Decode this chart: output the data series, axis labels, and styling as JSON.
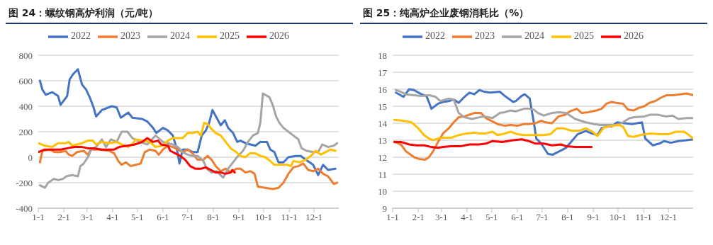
{
  "chart_data": [
    {
      "type": "line",
      "title": "图 24：螺纹钢高炉利润（元/吨）",
      "xlim": [
        "--01-01",
        "--12-31"
      ],
      "xticks": [
        {
          "value": "--01-01",
          "label": "1-1"
        },
        {
          "value": "--02-01",
          "label": "2-1"
        },
        {
          "value": "--03-01",
          "label": "3-1"
        },
        {
          "value": "--04-01",
          "label": "4-1"
        },
        {
          "value": "--05-01",
          "label": "5-1"
        },
        {
          "value": "--06-01",
          "label": "6-1"
        },
        {
          "value": "--07-01",
          "label": "7-1"
        },
        {
          "value": "--08-01",
          "label": "8-1"
        },
        {
          "value": "--09-01",
          "label": "9-1"
        },
        {
          "value": "--10-01",
          "label": "10-1"
        },
        {
          "value": "--11-01",
          "label": "11-1"
        },
        {
          "value": "--12-01",
          "label": "12-1"
        }
      ],
      "ylim": [
        -400,
        800
      ],
      "yticks": [
        -400,
        -200,
        0,
        200,
        400,
        600,
        800
      ],
      "grid": "y",
      "legend": "top",
      "marker": "none",
      "line_style": "solid",
      "series": [
        {
          "name": "2022",
          "color": "#4472c4",
          "x": [
            "--01-03",
            "--01-06",
            "--01-10",
            "--01-18",
            "--01-25",
            "--01-28",
            "--02-05",
            "--02-08",
            "--02-12",
            "--02-18",
            "--02-23",
            "--02-28",
            "--03-05",
            "--03-09",
            "--03-12",
            "--03-19",
            "--03-31",
            "--04-06",
            "--04-11",
            "--04-20",
            "--04-25",
            "--05-07",
            "--05-13",
            "--05-20",
            "--05-24",
            "--06-01",
            "--06-07",
            "--06-13",
            "--06-18",
            "--06-21",
            "--06-25",
            "--07-01",
            "--07-07",
            "--07-13",
            "--07-18",
            "--07-23",
            "--07-27",
            "--07-31",
            "--08-05",
            "--08-10",
            "--08-15",
            "--08-19",
            "--08-25",
            "--08-30",
            "--09-03",
            "--09-09",
            "--09-15",
            "--09-21",
            "--09-27",
            "--10-05",
            "--10-09",
            "--10-14",
            "--10-19",
            "--10-25",
            "--10-31",
            "--11-09",
            "--11-15",
            "--11-21",
            "--11-30",
            "--12-06",
            "--12-12",
            "--12-18",
            "--12-27"
          ],
          "values": [
            600,
            530,
            490,
            510,
            480,
            410,
            480,
            610,
            650,
            690,
            570,
            530,
            460,
            390,
            320,
            370,
            400,
            390,
            310,
            350,
            310,
            300,
            280,
            230,
            190,
            230,
            210,
            170,
            60,
            -50,
            60,
            60,
            40,
            40,
            170,
            210,
            270,
            370,
            310,
            250,
            290,
            230,
            190,
            120,
            130,
            110,
            100,
            90,
            120,
            120,
            60,
            40,
            -40,
            -40,
            0,
            10,
            10,
            -20,
            -60,
            -140,
            -60,
            -100,
            -90
          ]
        },
        {
          "name": "2023",
          "color": "#ed7d31",
          "x": [
            "--01-03",
            "--01-06",
            "--01-15",
            "--01-21",
            "--01-28",
            "--02-03",
            "--02-07",
            "--02-11",
            "--02-17",
            "--02-25",
            "--03-02",
            "--03-06",
            "--03-16",
            "--03-28",
            "--04-03",
            "--04-08",
            "--04-12",
            "--04-17",
            "--04-23",
            "--04-29",
            "--05-05",
            "--05-10",
            "--05-16",
            "--05-23",
            "--05-27",
            "--06-01",
            "--06-07",
            "--06-13",
            "--06-19",
            "--06-25",
            "--07-01",
            "--07-07",
            "--07-13",
            "--07-20",
            "--07-25",
            "--07-30",
            "--08-04",
            "--08-10",
            "--08-16",
            "--08-22",
            "--08-29",
            "--09-03",
            "--09-09",
            "--09-15",
            "--09-20",
            "--09-24",
            "--10-03",
            "--10-12",
            "--10-19",
            "--10-25",
            "--10-31",
            "--11-06",
            "--11-12",
            "--11-18",
            "--11-24",
            "--11-30",
            "--12-06",
            "--12-12",
            "--12-18",
            "--12-25",
            "--12-29"
          ],
          "values": [
            -40,
            50,
            60,
            40,
            40,
            50,
            20,
            10,
            40,
            50,
            20,
            60,
            60,
            50,
            30,
            -30,
            -60,
            -40,
            -70,
            -60,
            -50,
            40,
            60,
            50,
            20,
            60,
            90,
            80,
            60,
            40,
            60,
            30,
            -20,
            -20,
            10,
            -20,
            -70,
            -110,
            -90,
            -120,
            -90,
            -90,
            -120,
            -110,
            -130,
            -230,
            -240,
            -250,
            -240,
            -200,
            -130,
            -80,
            -70,
            -50,
            -100,
            -110,
            -90,
            -130,
            -150,
            -210,
            -200
          ]
        },
        {
          "name": "2024",
          "color": "#a5a5a5",
          "x": [
            "--01-03",
            "--01-09",
            "--01-13",
            "--01-20",
            "--01-25",
            "--01-31",
            "--02-04",
            "--02-11",
            "--02-18",
            "--02-21",
            "--02-25",
            "--03-03",
            "--03-06",
            "--03-12",
            "--03-19",
            "--03-24",
            "--03-30",
            "--04-06",
            "--04-12",
            "--04-19",
            "--04-25",
            "--05-04",
            "--05-13",
            "--05-23",
            "--06-01",
            "--06-07",
            "--06-13",
            "--06-19",
            "--06-25",
            "--07-01",
            "--07-07",
            "--07-13",
            "--07-20",
            "--07-24",
            "--07-30",
            "--08-05",
            "--08-13",
            "--08-19",
            "--08-25",
            "--08-31",
            "--09-06",
            "--09-12",
            "--09-18",
            "--09-24",
            "--09-27",
            "--09-30",
            "--10-08",
            "--10-12",
            "--10-16",
            "--10-20",
            "--10-25",
            "--10-31",
            "--11-06",
            "--11-12",
            "--11-16",
            "--11-22",
            "--11-30",
            "--12-06",
            "--12-11",
            "--12-18",
            "--12-25",
            "--12-29"
          ],
          "values": [
            -220,
            -240,
            -200,
            -170,
            -180,
            -170,
            -150,
            -140,
            -150,
            -70,
            -50,
            10,
            60,
            80,
            140,
            80,
            140,
            120,
            200,
            200,
            150,
            120,
            100,
            170,
            120,
            110,
            100,
            80,
            40,
            20,
            10,
            10,
            -30,
            -90,
            -120,
            -110,
            -160,
            -90,
            -40,
            10,
            50,
            120,
            170,
            190,
            270,
            500,
            470,
            410,
            320,
            270,
            230,
            200,
            170,
            140,
            70,
            50,
            40,
            40,
            100,
            80,
            90,
            110
          ]
        },
        {
          "name": "2025",
          "color": "#ffc000",
          "x": [
            "--01-01",
            "--01-09",
            "--01-18",
            "--01-25",
            "--02-03",
            "--02-07",
            "--02-11",
            "--02-17",
            "--02-23",
            "--03-02",
            "--03-08",
            "--03-12",
            "--03-19",
            "--03-28",
            "--04-06",
            "--04-12",
            "--04-20",
            "--04-26",
            "--04-29",
            "--05-07",
            "--05-16",
            "--05-23",
            "--06-01",
            "--06-07",
            "--06-13",
            "--06-19",
            "--06-25",
            "--07-01",
            "--07-07",
            "--07-13",
            "--07-17",
            "--07-21",
            "--07-25",
            "--07-30",
            "--08-04",
            "--08-10",
            "--08-16",
            "--08-22",
            "--08-29",
            "--09-03",
            "--09-09",
            "--09-14",
            "--09-21",
            "--09-27",
            "--10-03",
            "--10-09",
            "--10-14",
            "--10-22",
            "--10-30",
            "--11-03",
            "--11-06",
            "--11-14",
            "--11-21",
            "--11-27",
            "--12-03",
            "--12-09",
            "--12-15",
            "--12-21",
            "--12-27"
          ],
          "values": [
            110,
            90,
            80,
            110,
            110,
            120,
            90,
            100,
            110,
            130,
            130,
            100,
            120,
            110,
            120,
            100,
            80,
            110,
            140,
            130,
            120,
            80,
            90,
            130,
            150,
            150,
            150,
            190,
            190,
            200,
            170,
            270,
            260,
            220,
            190,
            170,
            120,
            70,
            40,
            10,
            0,
            30,
            30,
            10,
            0,
            -30,
            -60,
            -60,
            -60,
            -70,
            -30,
            -40,
            -20,
            10,
            50,
            20,
            40,
            60,
            50
          ]
        },
        {
          "name": "2026",
          "color": "#ff0000",
          "x": [
            "--01-01",
            "--01-09",
            "--01-18",
            "--01-28",
            "--02-05",
            "--02-14",
            "--02-23",
            "--03-02",
            "--03-09",
            "--03-19",
            "--03-25",
            "--04-03",
            "--04-09",
            "--04-19",
            "--04-28",
            "--05-07",
            "--05-13",
            "--05-20",
            "--05-26",
            "--05-30",
            "--06-07",
            "--06-10",
            "--06-16",
            "--06-22",
            "--06-28",
            "--07-04",
            "--07-10",
            "--07-17",
            "--07-23",
            "--07-29",
            "--08-04",
            "--08-10",
            "--08-16",
            "--08-22",
            "--08-24",
            "--08-27"
          ],
          "values": [
            40,
            60,
            60,
            60,
            70,
            80,
            80,
            70,
            70,
            60,
            60,
            60,
            80,
            90,
            100,
            120,
            150,
            120,
            130,
            100,
            90,
            50,
            30,
            10,
            -20,
            -70,
            -90,
            -90,
            -80,
            -100,
            -120,
            -120,
            -130,
            -120,
            -100,
            -120
          ]
        }
      ]
    },
    {
      "type": "line",
      "title": "图 25：纯高炉企业废钢消耗比（%）",
      "xlim": [
        "--01-01",
        "--12-31"
      ],
      "xticks": [
        {
          "value": "--01-01",
          "label": "1-1"
        },
        {
          "value": "--02-01",
          "label": "2-1"
        },
        {
          "value": "--03-01",
          "label": "3-1"
        },
        {
          "value": "--04-01",
          "label": "4-1"
        },
        {
          "value": "--05-01",
          "label": "5-1"
        },
        {
          "value": "--06-01",
          "label": "6-1"
        },
        {
          "value": "--07-01",
          "label": "7-1"
        },
        {
          "value": "--08-01",
          "label": "8-1"
        },
        {
          "value": "--09-01",
          "label": "9-1"
        },
        {
          "value": "--10-01",
          "label": "10-1"
        },
        {
          "value": "--11-01",
          "label": "11-1"
        },
        {
          "value": "--12-01",
          "label": "12-1"
        }
      ],
      "ylim": [
        9,
        18
      ],
      "yticks": [
        9,
        10,
        11,
        12,
        13,
        14,
        15,
        16,
        17,
        18
      ],
      "grid": "y",
      "legend": "top",
      "marker": "none",
      "line_style": "solid",
      "series": [
        {
          "name": "2022",
          "color": "#4472c4",
          "x": [
            "--01-05",
            "--01-14",
            "--01-21",
            "--01-27",
            "--02-05",
            "--02-11",
            "--02-17",
            "--02-25",
            "--03-03",
            "--03-10",
            "--03-16",
            "--03-22",
            "--03-29",
            "--04-04",
            "--04-10",
            "--04-16",
            "--04-22",
            "--04-29",
            "--05-11",
            "--05-17",
            "--05-27",
            "--05-30",
            "--06-06",
            "--06-10",
            "--06-16",
            "--06-21",
            "--06-24",
            "--06-30",
            "--07-08",
            "--07-14",
            "--07-22",
            "--07-30",
            "--08-06",
            "--08-13",
            "--08-23",
            "--08-30",
            "--09-06",
            "--09-11",
            "--09-17",
            "--09-23",
            "--09-30",
            "--10-09",
            "--10-18",
            "--10-30",
            "--11-03",
            "--11-12",
            "--11-20",
            "--11-26",
            "--12-04",
            "--12-13",
            "--12-23",
            "--12-31"
          ],
          "values": [
            15.8,
            15.55,
            16,
            15.95,
            15.7,
            15.6,
            14.85,
            15.15,
            15.25,
            15.3,
            15.4,
            15.2,
            15.55,
            15.8,
            15.7,
            15.95,
            15.85,
            15.8,
            15.85,
            15.6,
            15.25,
            15.3,
            15.6,
            15.7,
            15.45,
            14.05,
            13.1,
            12.8,
            12.2,
            12.15,
            12.35,
            12.55,
            12.95,
            13.35,
            13.55,
            13.4,
            13.3,
            13.7,
            13.8,
            13.8,
            14.05,
            14,
            13.95,
            14.05,
            13.1,
            12.7,
            12.8,
            12.95,
            12.85,
            12.95,
            13,
            13.05
          ]
        },
        {
          "name": "2023",
          "color": "#ed7d31",
          "x": [
            "--01-03",
            "--01-11",
            "--01-17",
            "--01-27",
            "--02-02",
            "--02-09",
            "--02-14",
            "--02-19",
            "--02-25",
            "--03-03",
            "--03-10",
            "--03-16",
            "--03-22",
            "--03-29",
            "--04-04",
            "--04-10",
            "--04-18",
            "--04-24",
            "--04-30",
            "--05-08",
            "--05-17",
            "--05-24",
            "--06-01",
            "--06-09",
            "--06-15",
            "--06-23",
            "--06-30",
            "--07-05",
            "--07-13",
            "--07-21",
            "--07-29",
            "--08-04",
            "--08-12",
            "--08-18",
            "--08-26",
            "--09-05",
            "--09-11",
            "--09-17",
            "--09-23",
            "--09-29",
            "--10-07",
            "--10-13",
            "--10-20",
            "--10-26",
            "--11-02",
            "--11-08",
            "--11-15",
            "--11-22",
            "--11-29",
            "--12-07",
            "--12-15",
            "--12-23",
            "--12-31"
          ],
          "values": [
            12.9,
            12.75,
            12.35,
            12,
            11.9,
            11.85,
            12,
            12.35,
            12.9,
            13.4,
            13.7,
            14.05,
            14.35,
            14.4,
            14.5,
            14.6,
            14.6,
            14.3,
            14.15,
            13.95,
            13.85,
            13.9,
            13.85,
            13.95,
            13.95,
            14,
            14.15,
            14.05,
            14,
            14.4,
            14.5,
            14.7,
            14.85,
            14.6,
            14.65,
            14.75,
            14.85,
            15.15,
            15.25,
            15.2,
            15.15,
            14.8,
            14.75,
            14.9,
            15,
            15.2,
            15.3,
            15.5,
            15.65,
            15.65,
            15.7,
            15.75,
            15.65
          ]
        },
        {
          "name": "2024",
          "color": "#a5a5a5",
          "x": [
            "--01-05",
            "--01-11",
            "--01-17",
            "--01-27",
            "--02-05",
            "--02-14",
            "--02-22",
            "--02-28",
            "--03-10",
            "--03-16",
            "--03-22",
            "--03-29",
            "--04-07",
            "--04-16",
            "--04-22",
            "--05-02",
            "--05-11",
            "--05-17",
            "--05-24",
            "--05-30",
            "--06-06",
            "--06-09",
            "--06-15",
            "--06-21",
            "--06-26",
            "--07-03",
            "--07-13",
            "--07-22",
            "--07-30",
            "--08-10",
            "--08-23",
            "--09-02",
            "--09-09",
            "--09-17",
            "--09-29",
            "--10-07",
            "--10-15",
            "--10-21",
            "--11-02",
            "--11-09",
            "--11-18",
            "--11-28",
            "--12-06",
            "--12-13",
            "--12-23",
            "--12-31"
          ],
          "values": [
            15.95,
            15.85,
            15.7,
            15.65,
            15.6,
            15.65,
            15.55,
            15.3,
            15.45,
            15.4,
            14.6,
            14.35,
            14.25,
            14.35,
            14.4,
            14.3,
            14.6,
            14.65,
            14.75,
            14.7,
            14.8,
            14.85,
            14.85,
            14.8,
            14.6,
            14.45,
            14.6,
            14.65,
            14.6,
            14.25,
            14.05,
            13.95,
            13.9,
            13.9,
            13.9,
            14.05,
            14.3,
            14.35,
            14.4,
            14.5,
            14.5,
            14.4,
            14.45,
            14.25,
            14.3,
            14.3
          ]
        },
        {
          "name": "2025",
          "color": "#ffc000",
          "x": [
            "--01-03",
            "--01-14",
            "--01-24",
            "--02-01",
            "--02-08",
            "--02-14",
            "--02-19",
            "--02-25",
            "--03-03",
            "--03-13",
            "--03-22",
            "--04-01",
            "--04-10",
            "--04-16",
            "--04-24",
            "--05-02",
            "--05-08",
            "--05-14",
            "--05-24",
            "--06-01",
            "--06-09",
            "--06-15",
            "--06-24",
            "--07-03",
            "--07-11",
            "--07-19",
            "--07-27",
            "--08-06",
            "--08-15",
            "--08-23",
            "--08-31",
            "--09-06",
            "--09-14",
            "--09-25",
            "--10-02",
            "--10-07",
            "--10-13",
            "--10-20",
            "--10-28",
            "--11-09",
            "--11-22",
            "--12-01",
            "--12-10",
            "--12-20",
            "--12-26",
            "--12-31"
          ],
          "values": [
            14.2,
            14.15,
            14.05,
            13.7,
            13.3,
            13.1,
            13,
            13.1,
            13.15,
            13.15,
            13.3,
            13.4,
            13.45,
            13.4,
            13.4,
            13.5,
            13.3,
            13.35,
            13.5,
            13.35,
            13.3,
            13.3,
            13.3,
            13.3,
            13.35,
            13.7,
            13.7,
            13.55,
            13.55,
            13.7,
            13.5,
            13.25,
            13.75,
            13.85,
            13.9,
            13.8,
            13.25,
            13.2,
            13.3,
            13.4,
            13.35,
            13.35,
            13.5,
            13.5,
            13.3,
            13.1
          ]
        },
        {
          "name": "2026",
          "color": "#ff0000",
          "x": [
            "--01-03",
            "--01-11",
            "--01-21",
            "--01-30",
            "--02-08",
            "--02-17",
            "--02-25",
            "--03-03",
            "--03-13",
            "--03-25",
            "--04-04",
            "--04-16",
            "--04-24",
            "--05-02",
            "--05-14",
            "--05-27",
            "--06-06",
            "--06-15",
            "--06-23",
            "--07-03",
            "--07-13",
            "--07-24",
            "--07-30",
            "--08-10",
            "--08-20",
            "--08-30"
          ],
          "values": [
            12.9,
            12.9,
            12.75,
            12.7,
            12.7,
            12.6,
            12.55,
            12.6,
            12.65,
            12.65,
            12.75,
            12.75,
            12.8,
            12.95,
            12.9,
            13,
            13.05,
            12.95,
            12.8,
            12.8,
            12.7,
            12.75,
            12.65,
            12.6,
            12.6,
            12.6
          ]
        }
      ]
    }
  ]
}
